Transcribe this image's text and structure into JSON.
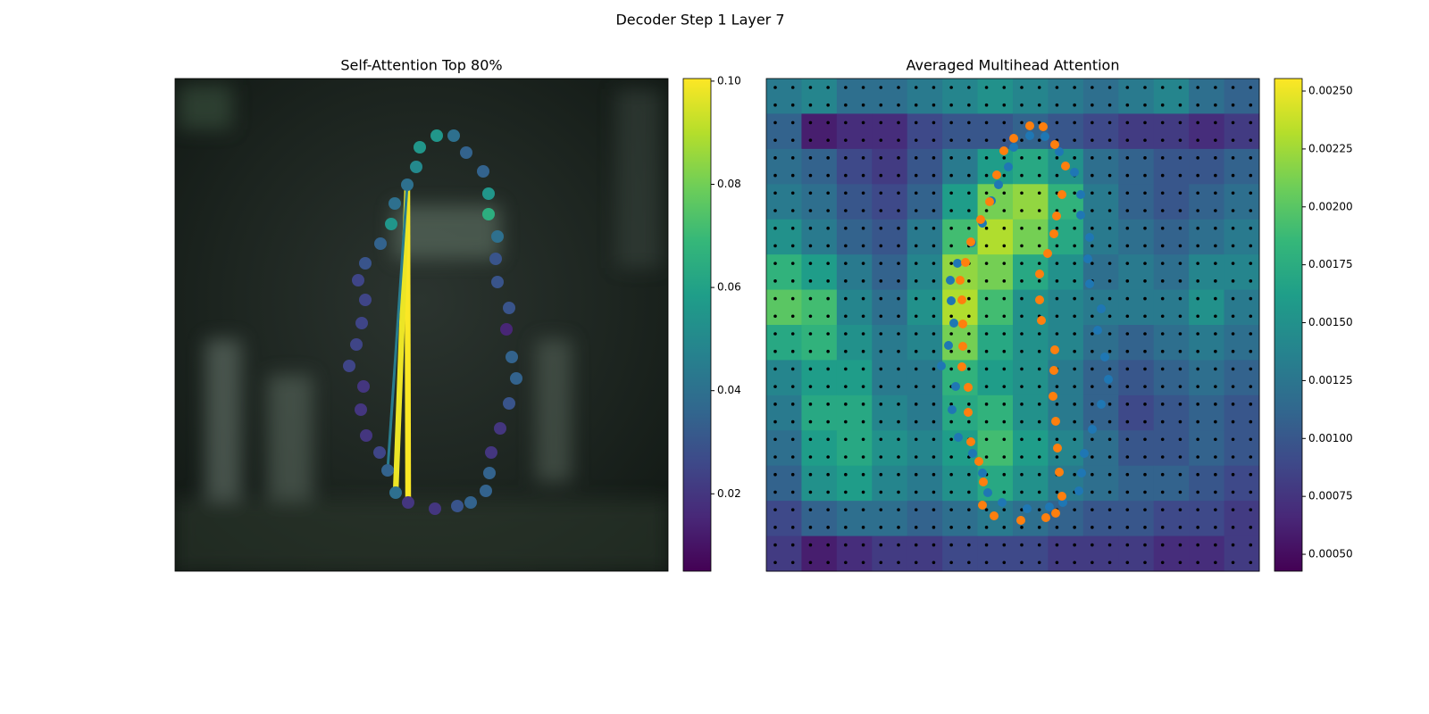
{
  "title": "Decoder Step 1 Layer 7",
  "chart_data": [
    {
      "type": "scatter",
      "title": "Self-Attention Top 80%",
      "xlim": [
        0,
        552
      ],
      "ylim": [
        552,
        0
      ],
      "x": [
        260,
        274,
        293,
        312,
        326,
        345,
        351,
        351,
        361,
        359,
        361,
        374,
        371,
        377,
        382,
        374,
        364,
        354,
        352,
        348,
        331,
        316,
        291,
        261,
        247,
        238,
        229,
        214,
        208,
        211,
        195,
        203,
        209,
        213,
        205,
        213,
        230,
        242,
        246,
        270
      ],
      "y": [
        119,
        77,
        64,
        64,
        83,
        104,
        129,
        152,
        177,
        202,
        228,
        257,
        281,
        312,
        336,
        364,
        392,
        419,
        442,
        462,
        475,
        479,
        482,
        475,
        464,
        439,
        419,
        400,
        371,
        345,
        322,
        298,
        274,
        248,
        226,
        207,
        185,
        163,
        140,
        99
      ],
      "values": [
        0.04,
        0.055,
        0.055,
        0.04,
        0.035,
        0.035,
        0.055,
        0.065,
        0.04,
        0.03,
        0.03,
        0.03,
        0.015,
        0.035,
        0.035,
        0.03,
        0.02,
        0.02,
        0.035,
        0.035,
        0.035,
        0.03,
        0.02,
        0.02,
        0.04,
        0.035,
        0.025,
        0.02,
        0.02,
        0.02,
        0.025,
        0.025,
        0.025,
        0.025,
        0.025,
        0.03,
        0.035,
        0.055,
        0.04,
        0.05
      ],
      "links": [
        {
          "from": 0,
          "to": 23,
          "value": 0.1
        },
        {
          "from": 0,
          "to": 24,
          "value": 0.098
        },
        {
          "from": 0,
          "to": 25,
          "value": 0.045
        }
      ],
      "clim": [
        0.005,
        0.1005
      ],
      "cticks": [
        0.02,
        0.04,
        0.06,
        0.08,
        {
          "value": 0.1,
          "label": "0.10"
        }
      ]
    },
    {
      "type": "heatmap",
      "title": "Averaged Multihead Attention",
      "xlim": [
        0,
        552
      ],
      "ylim": [
        552,
        0
      ],
      "heatmap": [
        [
          0.0013,
          0.0014,
          0.0012,
          0.0012,
          0.0013,
          0.0014,
          0.0015,
          0.0014,
          0.0013,
          0.0012,
          0.0013,
          0.0014,
          0.0012,
          0.0011
        ],
        [
          0.0011,
          0.0006,
          0.0007,
          0.0007,
          0.0009,
          0.001,
          0.001,
          0.0011,
          0.001,
          0.0009,
          0.0008,
          0.0008,
          0.0007,
          0.0008
        ],
        [
          0.0012,
          0.0011,
          0.0009,
          0.0008,
          0.001,
          0.0013,
          0.0016,
          0.0017,
          0.0015,
          0.0012,
          0.0011,
          0.001,
          0.001,
          0.0011
        ],
        [
          0.0013,
          0.0012,
          0.001,
          0.0009,
          0.0011,
          0.0016,
          0.0021,
          0.0022,
          0.0018,
          0.0013,
          0.0011,
          0.001,
          0.0011,
          0.0012
        ],
        [
          0.0015,
          0.0013,
          0.0011,
          0.001,
          0.0013,
          0.0019,
          0.0023,
          0.0021,
          0.0017,
          0.0013,
          0.0012,
          0.0011,
          0.0012,
          0.0013
        ],
        [
          0.0018,
          0.0016,
          0.0013,
          0.0011,
          0.0014,
          0.0022,
          0.0021,
          0.0017,
          0.0015,
          0.0012,
          0.0013,
          0.0012,
          0.0014,
          0.0014
        ],
        [
          0.002,
          0.0019,
          0.0014,
          0.0012,
          0.0015,
          0.0023,
          0.0019,
          0.0015,
          0.0014,
          0.0013,
          0.0013,
          0.0013,
          0.0015,
          0.0013
        ],
        [
          0.0017,
          0.0018,
          0.0015,
          0.0013,
          0.0014,
          0.0021,
          0.0017,
          0.0015,
          0.0014,
          0.0012,
          0.0011,
          0.0012,
          0.0013,
          0.0012
        ],
        [
          0.0014,
          0.0016,
          0.0016,
          0.0013,
          0.0013,
          0.0018,
          0.0016,
          0.0015,
          0.0013,
          0.0011,
          0.001,
          0.0011,
          0.0012,
          0.0011
        ],
        [
          0.0013,
          0.0017,
          0.0017,
          0.0014,
          0.0013,
          0.0017,
          0.0018,
          0.0015,
          0.0013,
          0.0011,
          0.0009,
          0.001,
          0.0011,
          0.001
        ],
        [
          0.0012,
          0.0016,
          0.0017,
          0.0015,
          0.0014,
          0.0016,
          0.0019,
          0.0016,
          0.0014,
          0.0012,
          0.001,
          0.001,
          0.0011,
          0.001
        ],
        [
          0.0011,
          0.0015,
          0.0016,
          0.0014,
          0.0013,
          0.0015,
          0.0017,
          0.0015,
          0.0013,
          0.0012,
          0.0011,
          0.0011,
          0.001,
          0.0009
        ],
        [
          0.0009,
          0.0011,
          0.0012,
          0.0012,
          0.0011,
          0.0012,
          0.0013,
          0.0012,
          0.0011,
          0.001,
          0.001,
          0.0009,
          0.0009,
          0.0008
        ],
        [
          0.0008,
          0.0006,
          0.0007,
          0.0008,
          0.0008,
          0.0009,
          0.0009,
          0.0009,
          0.0008,
          0.0008,
          0.0008,
          0.0007,
          0.0007,
          0.0008
        ]
      ],
      "series": [
        {
          "color": "#1f77b4",
          "x": [
            312,
            328,
            345,
            352,
            352,
            362,
            360,
            362,
            375,
            371,
            379,
            383,
            375,
            365,
            356,
            353,
            350,
            332,
            317,
            292,
            264,
            248,
            242,
            231,
            215,
            208,
            212,
            196,
            204,
            210,
            207,
            206,
            214,
            230,
            242,
            252,
            260,
            271,
            277,
            295
          ],
          "y": [
            65,
            82,
            105,
            130,
            153,
            178,
            202,
            230,
            258,
            282,
            312,
            337,
            365,
            393,
            420,
            442,
            462,
            475,
            480,
            482,
            475,
            464,
            442,
            420,
            402,
            371,
            345,
            322,
            299,
            274,
            249,
            226,
            207,
            184,
            162,
            137,
            119,
            99,
            77,
            64
          ]
        },
        {
          "color": "#ff7f0e",
          "x": [
            295,
            310,
            323,
            335,
            331,
            325,
            322,
            315,
            306,
            306,
            308,
            323,
            322,
            321,
            324,
            326,
            328,
            331,
            324,
            313,
            285,
            255,
            242,
            243,
            238,
            229,
            226,
            226,
            219,
            220,
            220,
            219,
            217,
            223,
            229,
            240,
            250,
            258,
            266,
            277
          ],
          "y": [
            53,
            54,
            74,
            98,
            130,
            154,
            174,
            196,
            219,
            248,
            271,
            304,
            327,
            356,
            384,
            414,
            441,
            468,
            487,
            492,
            495,
            490,
            478,
            452,
            429,
            407,
            374,
            346,
            323,
            300,
            275,
            248,
            226,
            206,
            183,
            158,
            138,
            108,
            81,
            67
          ]
        }
      ],
      "clim": [
        0.000427,
        0.002554
      ],
      "cticks": [
        {
          "value": 0.0005,
          "label": "0.00050"
        },
        {
          "value": 0.00075,
          "label": "0.00075"
        },
        {
          "value": 0.001,
          "label": "0.00100"
        },
        {
          "value": 0.00125,
          "label": "0.00125"
        },
        {
          "value": 0.0015,
          "label": "0.00150"
        },
        {
          "value": 0.00175,
          "label": "0.00175"
        },
        {
          "value": 0.002,
          "label": "0.00200"
        },
        {
          "value": 0.00225,
          "label": "0.00225"
        },
        {
          "value": 0.0025,
          "label": "0.00250"
        }
      ]
    }
  ]
}
